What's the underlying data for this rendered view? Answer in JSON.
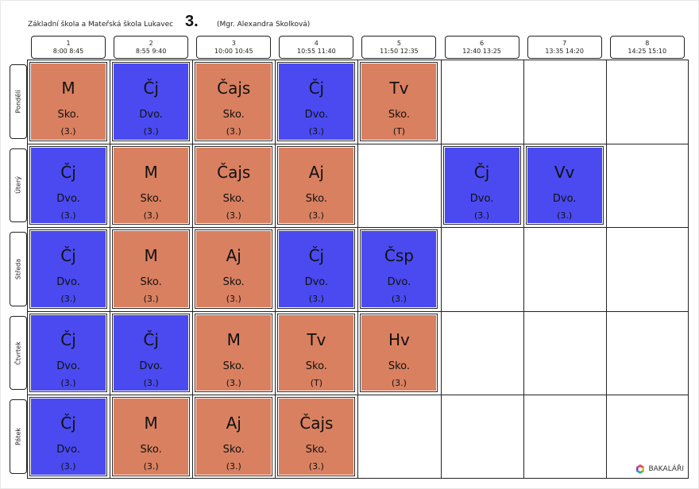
{
  "header": {
    "school": "Základní škola a Mateřská škola Lukavec",
    "class": "3.",
    "teacher": "(Mgr. Alexandra Skolková)"
  },
  "periods": [
    {
      "num": "1",
      "time": "8:00  8:45"
    },
    {
      "num": "2",
      "time": "8:55  9:40"
    },
    {
      "num": "3",
      "time": "10:00 10:45"
    },
    {
      "num": "4",
      "time": "10:55 11:40"
    },
    {
      "num": "5",
      "time": "11:50 12:35"
    },
    {
      "num": "6",
      "time": "12:40 13:25"
    },
    {
      "num": "7",
      "time": "13:35 14:20"
    },
    {
      "num": "8",
      "time": "14:25 15:10"
    }
  ],
  "days": [
    "Pondělí",
    "Úterý",
    "Středa",
    "Čtvrtek",
    "Pátek"
  ],
  "lessons": [
    [
      {
        "subject": "M",
        "teacher": "Sko.",
        "room": "(3.)",
        "color": "orange"
      },
      {
        "subject": "Čj",
        "teacher": "Dvo.",
        "room": "(3.)",
        "color": "blue"
      },
      {
        "subject": "Čajs",
        "teacher": "Sko.",
        "room": "(3.)",
        "color": "orange"
      },
      {
        "subject": "Čj",
        "teacher": "Dvo.",
        "room": "(3.)",
        "color": "blue"
      },
      {
        "subject": "Tv",
        "teacher": "Sko.",
        "room": "(T)",
        "color": "orange"
      },
      null,
      null,
      null
    ],
    [
      {
        "subject": "Čj",
        "teacher": "Dvo.",
        "room": "(3.)",
        "color": "blue"
      },
      {
        "subject": "M",
        "teacher": "Sko.",
        "room": "(3.)",
        "color": "orange"
      },
      {
        "subject": "Čajs",
        "teacher": "Sko.",
        "room": "(3.)",
        "color": "orange"
      },
      {
        "subject": "Aj",
        "teacher": "Sko.",
        "room": "(3.)",
        "color": "orange"
      },
      null,
      {
        "subject": "Čj",
        "teacher": "Dvo.",
        "room": "(3.)",
        "color": "blue"
      },
      {
        "subject": "Vv",
        "teacher": "Dvo.",
        "room": "(3.)",
        "color": "blue"
      },
      null
    ],
    [
      {
        "subject": "Čj",
        "teacher": "Dvo.",
        "room": "(3.)",
        "color": "blue"
      },
      {
        "subject": "M",
        "teacher": "Sko.",
        "room": "(3.)",
        "color": "orange"
      },
      {
        "subject": "Aj",
        "teacher": "Sko.",
        "room": "(3.)",
        "color": "orange"
      },
      {
        "subject": "Čj",
        "teacher": "Dvo.",
        "room": "(3.)",
        "color": "blue"
      },
      {
        "subject": "Čsp",
        "teacher": "Dvo.",
        "room": "(3.)",
        "color": "blue"
      },
      null,
      null,
      null
    ],
    [
      {
        "subject": "Čj",
        "teacher": "Dvo.",
        "room": "(3.)",
        "color": "blue"
      },
      {
        "subject": "Čj",
        "teacher": "Dvo.",
        "room": "(3.)",
        "color": "blue"
      },
      {
        "subject": "M",
        "teacher": "Sko.",
        "room": "(3.)",
        "color": "orange"
      },
      {
        "subject": "Tv",
        "teacher": "Sko.",
        "room": "(T)",
        "color": "orange"
      },
      {
        "subject": "Hv",
        "teacher": "Sko.",
        "room": "(3.)",
        "color": "orange"
      },
      null,
      null,
      null
    ],
    [
      {
        "subject": "Čj",
        "teacher": "Dvo.",
        "room": "(3.)",
        "color": "blue"
      },
      {
        "subject": "M",
        "teacher": "Sko.",
        "room": "(3.)",
        "color": "orange"
      },
      {
        "subject": "Aj",
        "teacher": "Sko.",
        "room": "(3.)",
        "color": "orange"
      },
      {
        "subject": "Čajs",
        "teacher": "Sko.",
        "room": "(3.)",
        "color": "orange"
      },
      null,
      null,
      null,
      null
    ]
  ],
  "colors": {
    "orange": "#d98060",
    "blue": "#4a4af0"
  },
  "logo": {
    "text": "BAKALÁŘI",
    "icon": "bakalari-logo-icon"
  }
}
